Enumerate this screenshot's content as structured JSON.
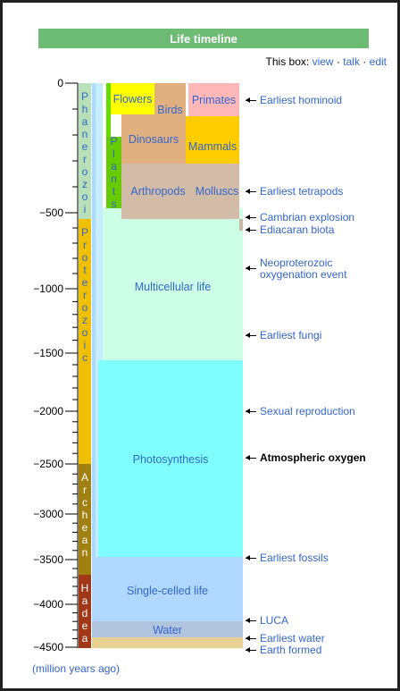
{
  "header": {
    "title": "Life timeline",
    "box_label": "This box:",
    "links": [
      "view",
      "talk",
      "edit"
    ],
    "separator": "·"
  },
  "axis": {
    "ticks": [
      "0",
      "−500",
      "−1000",
      "−1500",
      "−2000",
      "−2500",
      "−3000",
      "−3500",
      "−4000",
      "−4500"
    ]
  },
  "eons": [
    "Phanerozoic",
    "Proterozoic",
    "Archean",
    "Hadean"
  ],
  "groups": [
    "Plants",
    "Flowers",
    "Birds",
    "Primates",
    "Dinosaurs",
    "Mammals",
    "Arthropods",
    "Molluscs",
    "Multicellular life",
    "Photosynthesis",
    "Single-celled life",
    "Water"
  ],
  "events": [
    "Earliest hominoid",
    "Earliest tetrapods",
    "Cambrian explosion",
    "Ediacaran biota",
    "Neoproterozoic",
    "oxygenation event",
    "Earliest fungi",
    "Sexual reproduction",
    "Atmospheric oxygen",
    "Earliest fossils",
    "LUCA",
    "Earliest water",
    "Earth formed"
  ],
  "footer": "(million years ago)"
}
